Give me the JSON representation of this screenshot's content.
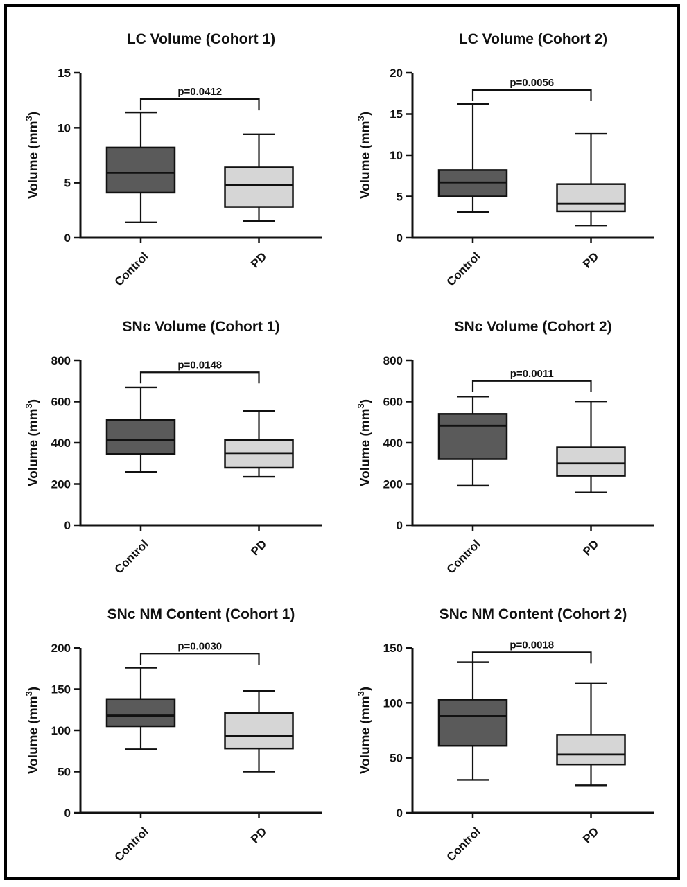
{
  "figure": {
    "frame_border_color": "#000000",
    "background": "#ffffff",
    "line_color": "#111111",
    "control_fill": "#5a5a5a",
    "pd_fill": "#d6d6d6"
  },
  "chart_data": [
    {
      "type": "box",
      "title": "LC Volume (Cohort 1)",
      "ylabel": "Volume (mm³)",
      "xlabel": "",
      "categories": [
        "Control",
        "PD"
      ],
      "ylim": [
        0,
        15
      ],
      "yticks": [
        0,
        5,
        10,
        15
      ],
      "p_label": "p=0.0412",
      "bracket_y": 12.6,
      "legend": "none",
      "grid": false,
      "series": [
        {
          "name": "Control",
          "min": 1.4,
          "q1": 4.1,
          "median": 5.9,
          "q3": 8.2,
          "max": 11.4,
          "fill": "#5a5a5a"
        },
        {
          "name": "PD",
          "min": 1.5,
          "q1": 2.8,
          "median": 4.8,
          "q3": 6.4,
          "max": 9.4,
          "fill": "#d6d6d6"
        }
      ]
    },
    {
      "type": "box",
      "title": "LC Volume (Cohort 2)",
      "ylabel": "Volume (mm³)",
      "xlabel": "",
      "categories": [
        "Control",
        "PD"
      ],
      "ylim": [
        0,
        20
      ],
      "yticks": [
        0,
        5,
        10,
        15,
        20
      ],
      "p_label": "p=0.0056",
      "bracket_y": 17.9,
      "legend": "none",
      "grid": false,
      "series": [
        {
          "name": "Control",
          "min": 3.1,
          "q1": 5.0,
          "median": 6.7,
          "q3": 8.2,
          "max": 16.2,
          "fill": "#5a5a5a"
        },
        {
          "name": "PD",
          "min": 1.5,
          "q1": 3.2,
          "median": 4.1,
          "q3": 6.5,
          "max": 12.6,
          "fill": "#d6d6d6"
        }
      ]
    },
    {
      "type": "box",
      "title": "SNc Volume (Cohort 1)",
      "ylabel": "Volume (mm³)",
      "xlabel": "",
      "categories": [
        "Control",
        "PD"
      ],
      "ylim": [
        0,
        800
      ],
      "yticks": [
        0,
        200,
        400,
        600,
        800
      ],
      "p_label": "p=0.0148",
      "bracket_y": 742,
      "legend": "none",
      "grid": false,
      "series": [
        {
          "name": "Control",
          "min": 259,
          "q1": 346,
          "median": 413,
          "q3": 511,
          "max": 669,
          "fill": "#5a5a5a"
        },
        {
          "name": "PD",
          "min": 235,
          "q1": 279,
          "median": 350,
          "q3": 413,
          "max": 555,
          "fill": "#d6d6d6"
        }
      ]
    },
    {
      "type": "box",
      "title": "SNc Volume (Cohort 2)",
      "ylabel": "Volume (mm³)",
      "xlabel": "",
      "categories": [
        "Control",
        "PD"
      ],
      "ylim": [
        0,
        800
      ],
      "yticks": [
        0,
        200,
        400,
        600,
        800
      ],
      "p_label": "p=0.0011",
      "bracket_y": 700,
      "legend": "none",
      "grid": false,
      "series": [
        {
          "name": "Control",
          "min": 192,
          "q1": 321,
          "median": 483,
          "q3": 540,
          "max": 624,
          "fill": "#5a5a5a"
        },
        {
          "name": "PD",
          "min": 159,
          "q1": 240,
          "median": 300,
          "q3": 378,
          "max": 601,
          "fill": "#d6d6d6"
        }
      ]
    },
    {
      "type": "box",
      "title": "SNc NM Content (Cohort 1)",
      "ylabel": "Volume (mm³)",
      "xlabel": "",
      "categories": [
        "Control",
        "PD"
      ],
      "ylim": [
        0,
        200
      ],
      "yticks": [
        0,
        50,
        100,
        150,
        200
      ],
      "p_label": "p=0.0030",
      "bracket_y": 193,
      "legend": "none",
      "grid": false,
      "series": [
        {
          "name": "Control",
          "min": 77,
          "q1": 105,
          "median": 118,
          "q3": 138,
          "max": 176,
          "fill": "#5a5a5a"
        },
        {
          "name": "PD",
          "min": 50,
          "q1": 78,
          "median": 93,
          "q3": 121,
          "max": 148,
          "fill": "#d6d6d6"
        }
      ]
    },
    {
      "type": "box",
      "title": "SNc NM Content (Cohort 2)",
      "ylabel": "Volume (mm³)",
      "xlabel": "",
      "categories": [
        "Control",
        "PD"
      ],
      "ylim": [
        0,
        150
      ],
      "yticks": [
        0,
        50,
        100,
        150
      ],
      "p_label": "p=0.0018",
      "bracket_y": 146,
      "legend": "none",
      "grid": false,
      "series": [
        {
          "name": "Control",
          "min": 30,
          "q1": 61,
          "median": 88,
          "q3": 103,
          "max": 137,
          "fill": "#5a5a5a"
        },
        {
          "name": "PD",
          "min": 25,
          "q1": 44,
          "median": 53,
          "q3": 71,
          "max": 118,
          "fill": "#d6d6d6"
        }
      ]
    }
  ]
}
